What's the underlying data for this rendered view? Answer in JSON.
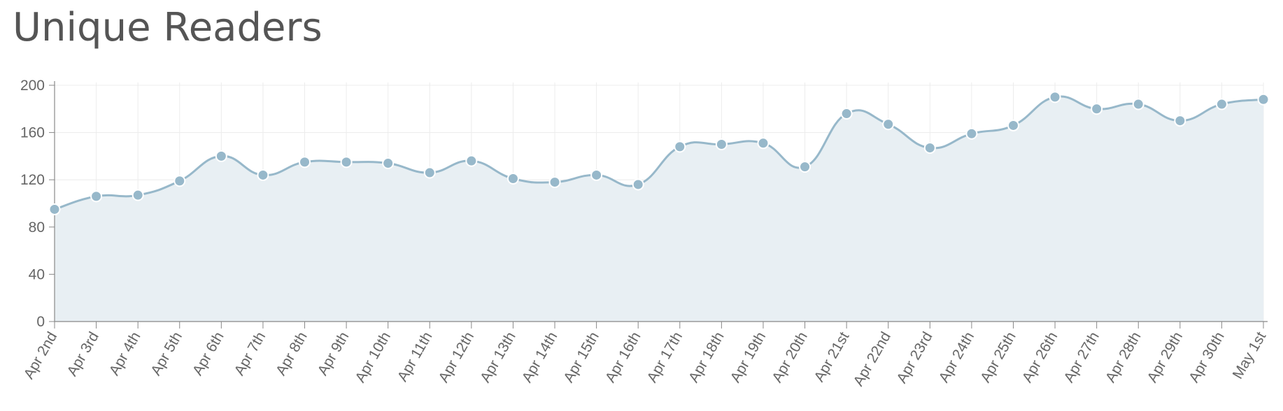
{
  "title": "Unique Readers",
  "colors": {
    "line": "#97b8ca",
    "fill": "#e8eff3",
    "point": "#97b8ca",
    "grid": "#ececec",
    "axis": "#888888",
    "text": "#666666"
  },
  "chart_data": {
    "type": "area",
    "title": "Unique Readers",
    "xlabel": "",
    "ylabel": "",
    "ylim": [
      0,
      200
    ],
    "yticks": [
      0,
      40,
      80,
      120,
      160,
      200
    ],
    "grid": true,
    "categories": [
      "Apr 2nd",
      "Apr 3rd",
      "Apr 4th",
      "Apr 5th",
      "Apr 6th",
      "Apr 7th",
      "Apr 8th",
      "Apr 9th",
      "Apr 10th",
      "Apr 11th",
      "Apr 12th",
      "Apr 13th",
      "Apr 14th",
      "Apr 15th",
      "Apr 16th",
      "Apr 17th",
      "Apr 18th",
      "Apr 19th",
      "Apr 20th",
      "Apr 21st",
      "Apr 22nd",
      "Apr 23rd",
      "Apr 24th",
      "Apr 25th",
      "Apr 26th",
      "Apr 27th",
      "Apr 28th",
      "Apr 29th",
      "Apr 30th",
      "May 1st"
    ],
    "series": [
      {
        "values": [
          95,
          106,
          107,
          119,
          140,
          124,
          135,
          135,
          134,
          126,
          136,
          121,
          118,
          124,
          116,
          148,
          150,
          151,
          131,
          176,
          167,
          147,
          159,
          166,
          190,
          180,
          184,
          170,
          184,
          188
        ]
      }
    ]
  }
}
